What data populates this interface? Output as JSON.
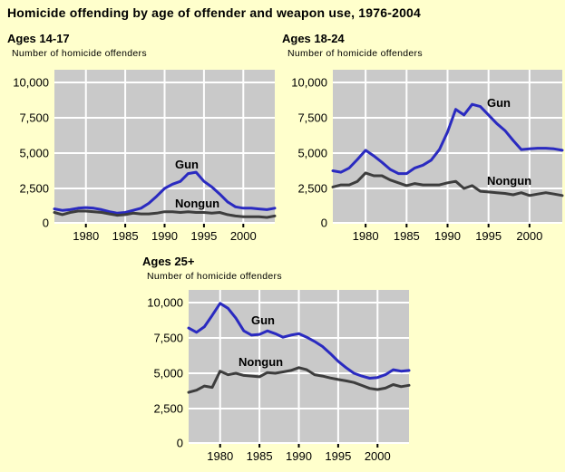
{
  "page": {
    "title": "Homicide offending by age of offender and weapon use, 1976-2004",
    "background": "#FFFFCC"
  },
  "chart_data": [
    {
      "type": "line",
      "title": "Ages 14-17",
      "ylabel": "Number of homicide offenders",
      "x": [
        1976,
        1977,
        1978,
        1979,
        1980,
        1981,
        1982,
        1983,
        1984,
        1985,
        1986,
        1987,
        1988,
        1989,
        1990,
        1991,
        1992,
        1993,
        1994,
        1995,
        1996,
        1997,
        1998,
        1999,
        2000,
        2001,
        2002,
        2003,
        2004
      ],
      "series": [
        {
          "name": "Gun",
          "color": "#2A2AC0",
          "values": [
            1050,
            950,
            1000,
            1100,
            1150,
            1100,
            1000,
            850,
            750,
            800,
            950,
            1100,
            1450,
            1950,
            2500,
            2800,
            3000,
            3550,
            3650,
            3000,
            2600,
            2100,
            1550,
            1200,
            1100,
            1100,
            1050,
            1000,
            1100
          ]
        },
        {
          "name": "Nongun",
          "color": "#3D3D3D",
          "values": [
            800,
            650,
            800,
            900,
            900,
            850,
            800,
            700,
            600,
            650,
            750,
            700,
            700,
            750,
            850,
            850,
            800,
            850,
            800,
            800,
            750,
            800,
            650,
            550,
            500,
            500,
            500,
            450,
            550
          ]
        }
      ],
      "ylim": [
        0,
        10900
      ],
      "yticks": [
        {
          "value": 0,
          "label": "0"
        },
        {
          "value": 2500,
          "label": "2,500"
        },
        {
          "value": 5000,
          "label": "5,000"
        },
        {
          "value": 7500,
          "label": "7,500"
        },
        {
          "value": 10000,
          "label": "10,000"
        }
      ],
      "xticks": [
        1980,
        1985,
        1990,
        1995,
        2000
      ],
      "grid": true,
      "legend": "inline-labels",
      "plot_bg": "#C9C9C9",
      "grid_color": "#FFFFFF"
    },
    {
      "type": "line",
      "title": "Ages 18-24",
      "ylabel": "Number of homicide offenders",
      "x": [
        1976,
        1977,
        1978,
        1979,
        1980,
        1981,
        1982,
        1983,
        1984,
        1985,
        1986,
        1987,
        1988,
        1989,
        1990,
        1991,
        1992,
        1993,
        1994,
        1995,
        1996,
        1997,
        1998,
        1999,
        2000,
        2001,
        2002,
        2003,
        2004
      ],
      "series": [
        {
          "name": "Gun",
          "color": "#2A2AC0",
          "values": [
            3750,
            3650,
            3950,
            4550,
            5200,
            4800,
            4350,
            3850,
            3550,
            3550,
            3950,
            4150,
            4500,
            5250,
            6500,
            8100,
            7700,
            8450,
            8300,
            7700,
            7100,
            6600,
            5900,
            5250,
            5300,
            5350,
            5350,
            5300,
            5200
          ]
        },
        {
          "name": "Nongun",
          "color": "#3D3D3D",
          "values": [
            2600,
            2750,
            2750,
            3000,
            3600,
            3400,
            3400,
            3100,
            2900,
            2700,
            2850,
            2750,
            2750,
            2750,
            2900,
            3000,
            2500,
            2700,
            2300,
            2250,
            2200,
            2150,
            2050,
            2200,
            2000,
            2100,
            2200,
            2100,
            2000
          ]
        }
      ],
      "ylim": [
        0,
        10900
      ],
      "yticks": [
        {
          "value": 0,
          "label": "0"
        },
        {
          "value": 2500,
          "label": "2,500"
        },
        {
          "value": 5000,
          "label": "5,000"
        },
        {
          "value": 7500,
          "label": "7,500"
        },
        {
          "value": 10000,
          "label": "10,000"
        }
      ],
      "xticks": [
        1980,
        1985,
        1990,
        1995,
        2000
      ],
      "grid": true,
      "legend": "inline-labels",
      "plot_bg": "#C9C9C9",
      "grid_color": "#FFFFFF"
    },
    {
      "type": "line",
      "title": "Ages 25+",
      "ylabel": "Number of homicide offenders",
      "x": [
        1976,
        1977,
        1978,
        1979,
        1980,
        1981,
        1982,
        1983,
        1984,
        1985,
        1986,
        1987,
        1988,
        1989,
        1990,
        1991,
        1992,
        1993,
        1994,
        1995,
        1996,
        1997,
        1998,
        1999,
        2000,
        2001,
        2002,
        2003,
        2004
      ],
      "series": [
        {
          "name": "Gun",
          "color": "#2A2AC0",
          "values": [
            8200,
            7900,
            8300,
            9100,
            9950,
            9600,
            8900,
            8000,
            7700,
            7750,
            8000,
            7800,
            7550,
            7700,
            7800,
            7550,
            7250,
            6900,
            6400,
            5850,
            5400,
            5000,
            4800,
            4650,
            4700,
            4900,
            5250,
            5150,
            5200
          ]
        },
        {
          "name": "Nongun",
          "color": "#3D3D3D",
          "values": [
            3650,
            3800,
            4100,
            4000,
            5150,
            4900,
            5000,
            4850,
            4800,
            4750,
            5050,
            5000,
            5100,
            5200,
            5400,
            5250,
            4900,
            4800,
            4670,
            4560,
            4460,
            4350,
            4140,
            3930,
            3850,
            3950,
            4200,
            4050,
            4150
          ]
        }
      ],
      "ylim": [
        0,
        10900
      ],
      "yticks": [
        {
          "value": 0,
          "label": "0"
        },
        {
          "value": 2500,
          "label": "2,500"
        },
        {
          "value": 5000,
          "label": "5,000"
        },
        {
          "value": 7500,
          "label": "7,500"
        },
        {
          "value": 10000,
          "label": "10,000"
        }
      ],
      "xticks": [
        1980,
        1985,
        1990,
        1995,
        2000
      ],
      "grid": true,
      "legend": "inline-labels",
      "plot_bg": "#C9C9C9",
      "grid_color": "#FFFFFF"
    }
  ]
}
